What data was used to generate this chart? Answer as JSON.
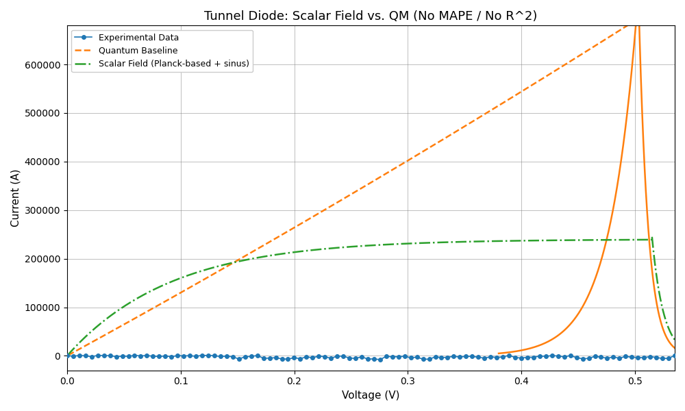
{
  "title": "Tunnel Diode: Scalar Field vs. QM (No MAPE / No R^2)",
  "xlabel": "Voltage (V)",
  "ylabel": "Current (A)",
  "xlim": [
    0.0,
    0.535
  ],
  "ylim": [
    -30000,
    680000
  ],
  "grid": true,
  "legend_labels": [
    "Experimental Data",
    "Quantum Baseline",
    "Scalar Field (Planck-based + sinus)"
  ],
  "exp_color": "#1f77b4",
  "qm_color": "#ff7f0e",
  "sf_color": "#2ca02c",
  "figsize": [
    10,
    6
  ],
  "dpi": 100,
  "yticks": [
    0,
    100000,
    200000,
    300000,
    400000,
    500000,
    600000
  ],
  "xticks": [
    0.0,
    0.1,
    0.2,
    0.3,
    0.4,
    0.5
  ]
}
